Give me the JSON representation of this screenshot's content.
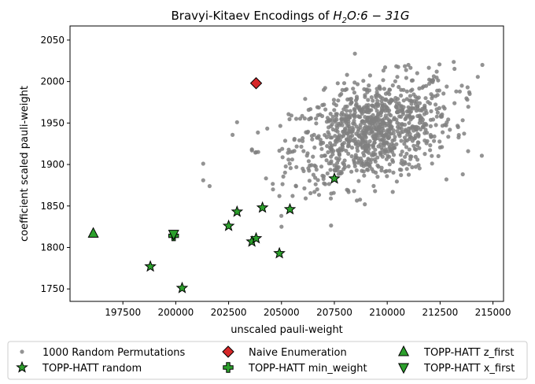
{
  "chart_data": {
    "type": "scatter",
    "title_parts": {
      "prefix": "Bravyi-Kitaev Encodings of ",
      "mol_base": "H",
      "mol_sub": "2",
      "mol_rest": "O:6 − 31G"
    },
    "xlabel": "unscaled pauli-weight",
    "ylabel": "coefficient scaled pauli-weight",
    "xlim": [
      195000,
      215500
    ],
    "ylim": [
      1735,
      2067
    ],
    "xticks": [
      197500,
      200000,
      202500,
      205000,
      207500,
      210000,
      212500,
      215000
    ],
    "yticks": [
      1750,
      1800,
      1850,
      1900,
      1950,
      2000,
      2050
    ],
    "grid": false,
    "legend_position": "bottom-outside",
    "random_cloud": {
      "name": "1000 Random Permutations",
      "count": 1000,
      "color": "#808080",
      "center": [
        209300,
        1940
      ],
      "spread": [
        1900,
        32
      ],
      "x_range": [
        201300,
        214500
      ],
      "y_range": [
        1815,
        2052
      ],
      "outliers": [
        [
          201300,
          1901
        ],
        [
          201300,
          1881
        ],
        [
          201600,
          1874
        ],
        [
          202900,
          1951
        ],
        [
          203600,
          1917
        ],
        [
          203900,
          1915
        ],
        [
          204600,
          1870
        ],
        [
          204900,
          1862
        ],
        [
          205000,
          1825
        ],
        [
          206000,
          1895
        ],
        [
          207000,
          1990
        ],
        [
          212800,
          1882
        ],
        [
          213900,
          1985
        ],
        [
          214500,
          2020
        ],
        [
          213800,
          1993
        ]
      ]
    },
    "series": [
      {
        "name": "Naive Enumeration",
        "marker": "diamond",
        "color": "#d62728",
        "points": [
          [
            203800,
            1998
          ]
        ]
      },
      {
        "name": "TOPP-HATT random",
        "marker": "star",
        "color": "#2ca02c",
        "points": [
          [
            198800,
            1777
          ],
          [
            200300,
            1751
          ],
          [
            202500,
            1826
          ],
          [
            202900,
            1843
          ],
          [
            203600,
            1807
          ],
          [
            203800,
            1811
          ],
          [
            204100,
            1848
          ],
          [
            204900,
            1793
          ],
          [
            205400,
            1846
          ],
          [
            207500,
            1883
          ]
        ]
      },
      {
        "name": "TOPP-HATT min_weight",
        "marker": "plus",
        "color": "#2ca02c",
        "points": [
          [
            199900,
            1814
          ]
        ]
      },
      {
        "name": "TOPP-HATT z_first",
        "marker": "triangle-up",
        "color": "#2ca02c",
        "points": [
          [
            196100,
            1817
          ]
        ]
      },
      {
        "name": "TOPP-HATT x_first",
        "marker": "triangle-down",
        "color": "#2ca02c",
        "points": [
          [
            199900,
            1816
          ]
        ]
      }
    ],
    "legend_order": [
      "1000 Random Permutations",
      "TOPP-HATT random",
      "Naive Enumeration",
      "TOPP-HATT min_weight",
      "TOPP-HATT z_first",
      "TOPP-HATT x_first"
    ]
  }
}
